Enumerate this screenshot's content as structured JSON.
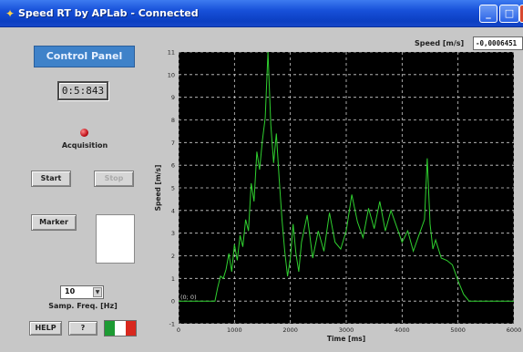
{
  "window": {
    "title": "Speed RT by APLab - Connected",
    "minimize_glyph": "_",
    "maximize_glyph": "□",
    "close_glyph": "×"
  },
  "control_panel": {
    "header": "Control Panel",
    "timer": "0:5:843",
    "acquisition_label": "Acquisition",
    "start_label": "Start",
    "stop_label": "Stop",
    "marker_label": "Marker",
    "sampling_frequency": "10",
    "sampling_label": "Samp. Freq. [Hz]",
    "help_label": "HELP",
    "question_label": "?"
  },
  "speed_readout": {
    "label": "Speed [m/s]",
    "value": "-0,0006451"
  },
  "colors": {
    "plot_bg": "#000000",
    "trace": "#2fd02f",
    "grid": "#d0d0d0",
    "led": "#c0121a",
    "panel_header": "#3f82c9",
    "flag_green": "#1d9b33",
    "flag_white": "#ffffff",
    "flag_red": "#d8281e"
  },
  "chart_data": {
    "type": "line",
    "xlabel": "Time [ms]",
    "ylabel": "Speed [m/s]",
    "xlim": [
      0,
      6000
    ],
    "ylim": [
      -1,
      11
    ],
    "xticks": [
      0,
      1000,
      2000,
      3000,
      4000,
      5000,
      6000
    ],
    "yticks": [
      -1,
      0,
      1,
      2,
      3,
      4,
      5,
      6,
      7,
      8,
      9,
      10,
      11
    ],
    "grid": true,
    "cursor_label": "(0; 0)",
    "series": [
      {
        "color": "#2fd02f",
        "x": [
          0,
          650,
          700,
          750,
          800,
          850,
          900,
          950,
          1000,
          1050,
          1100,
          1150,
          1200,
          1250,
          1300,
          1350,
          1400,
          1450,
          1500,
          1550,
          1600,
          1650,
          1700,
          1750,
          1800,
          1850,
          1900,
          1950,
          2000,
          2050,
          2100,
          2150,
          2200,
          2300,
          2400,
          2500,
          2600,
          2700,
          2800,
          2900,
          3000,
          3100,
          3200,
          3300,
          3400,
          3500,
          3600,
          3700,
          3800,
          3900,
          4000,
          4100,
          4200,
          4300,
          4400,
          4450,
          4500,
          4550,
          4600,
          4700,
          4800,
          4900,
          5000,
          5100,
          5200,
          6000
        ],
        "y": [
          0,
          0,
          0.6,
          1.1,
          1.0,
          1.4,
          2.1,
          1.3,
          2.5,
          1.8,
          2.9,
          2.4,
          3.6,
          3.1,
          5.2,
          4.4,
          6.6,
          5.8,
          7.1,
          8.1,
          11.0,
          7.8,
          6.1,
          7.4,
          5.4,
          3.6,
          2.2,
          1.1,
          1.9,
          3.4,
          2.1,
          1.3,
          2.6,
          3.8,
          1.9,
          3.1,
          2.2,
          3.9,
          2.6,
          2.3,
          3.1,
          4.7,
          3.5,
          2.8,
          4.1,
          3.2,
          4.4,
          3.1,
          4.0,
          3.3,
          2.6,
          3.1,
          2.2,
          2.9,
          3.6,
          6.3,
          3.4,
          2.3,
          2.7,
          1.9,
          1.8,
          1.6,
          0.9,
          0.3,
          0.0,
          0.0
        ]
      }
    ]
  }
}
